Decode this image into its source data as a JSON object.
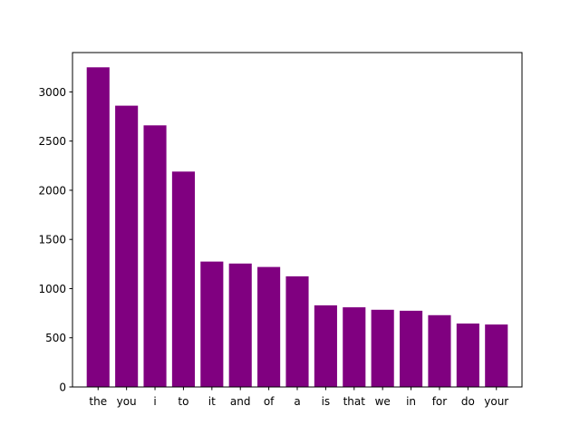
{
  "chart_data": {
    "type": "bar",
    "categories": [
      "the",
      "you",
      "i",
      "to",
      "it",
      "and",
      "of",
      "a",
      "is",
      "that",
      "we",
      "in",
      "for",
      "do",
      "your"
    ],
    "values": [
      3250,
      2860,
      2660,
      2190,
      1275,
      1255,
      1220,
      1125,
      830,
      810,
      785,
      775,
      730,
      645,
      635
    ],
    "ylim": [
      0,
      3400
    ],
    "yticks": [
      0,
      500,
      1000,
      1500,
      2000,
      2500,
      3000
    ],
    "bar_color": "#800080",
    "grid": false
  }
}
